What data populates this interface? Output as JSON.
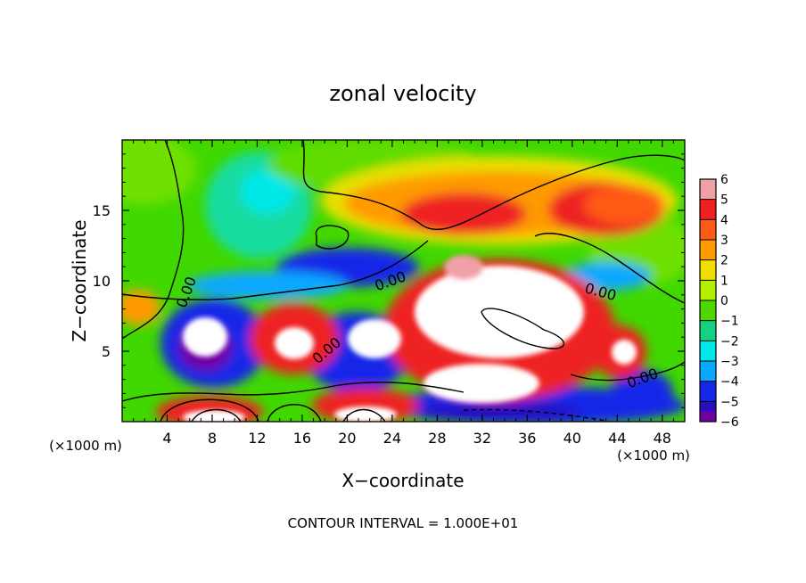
{
  "chart_data": {
    "type": "heatmap",
    "title": "zonal velocity",
    "xlabel": "X−coordinate",
    "ylabel": "Z−coordinate",
    "x_unit": "(×1000 m)",
    "y_unit": "(×1000 m)",
    "xlim": [
      0,
      50
    ],
    "ylim": [
      0,
      20
    ],
    "x_ticks": [
      "4",
      "8",
      "12",
      "16",
      "20",
      "24",
      "28",
      "32",
      "36",
      "40",
      "44",
      "48"
    ],
    "y_ticks": [
      "5",
      "10",
      "15"
    ],
    "colorbar": {
      "labels": [
        "6",
        "5",
        "4",
        "3",
        "2",
        "1",
        "0",
        "−1",
        "−2",
        "−3",
        "−4",
        "−5",
        "−6"
      ],
      "colors": [
        "#f2a0a8",
        "#ee2020",
        "#ff5a18",
        "#ff9a00",
        "#f0e000",
        "#b4ee00",
        "#4ed800",
        "#16d280",
        "#00e8e8",
        "#0aa8ff",
        "#1428e8",
        "#2810c0",
        "#7000a0"
      ]
    },
    "contour_labels": [
      "0.00",
      "0.00",
      "0.00",
      "0.00",
      "0.00"
    ],
    "footer": "CONTOUR INTERVAL = 1.000E+01"
  }
}
